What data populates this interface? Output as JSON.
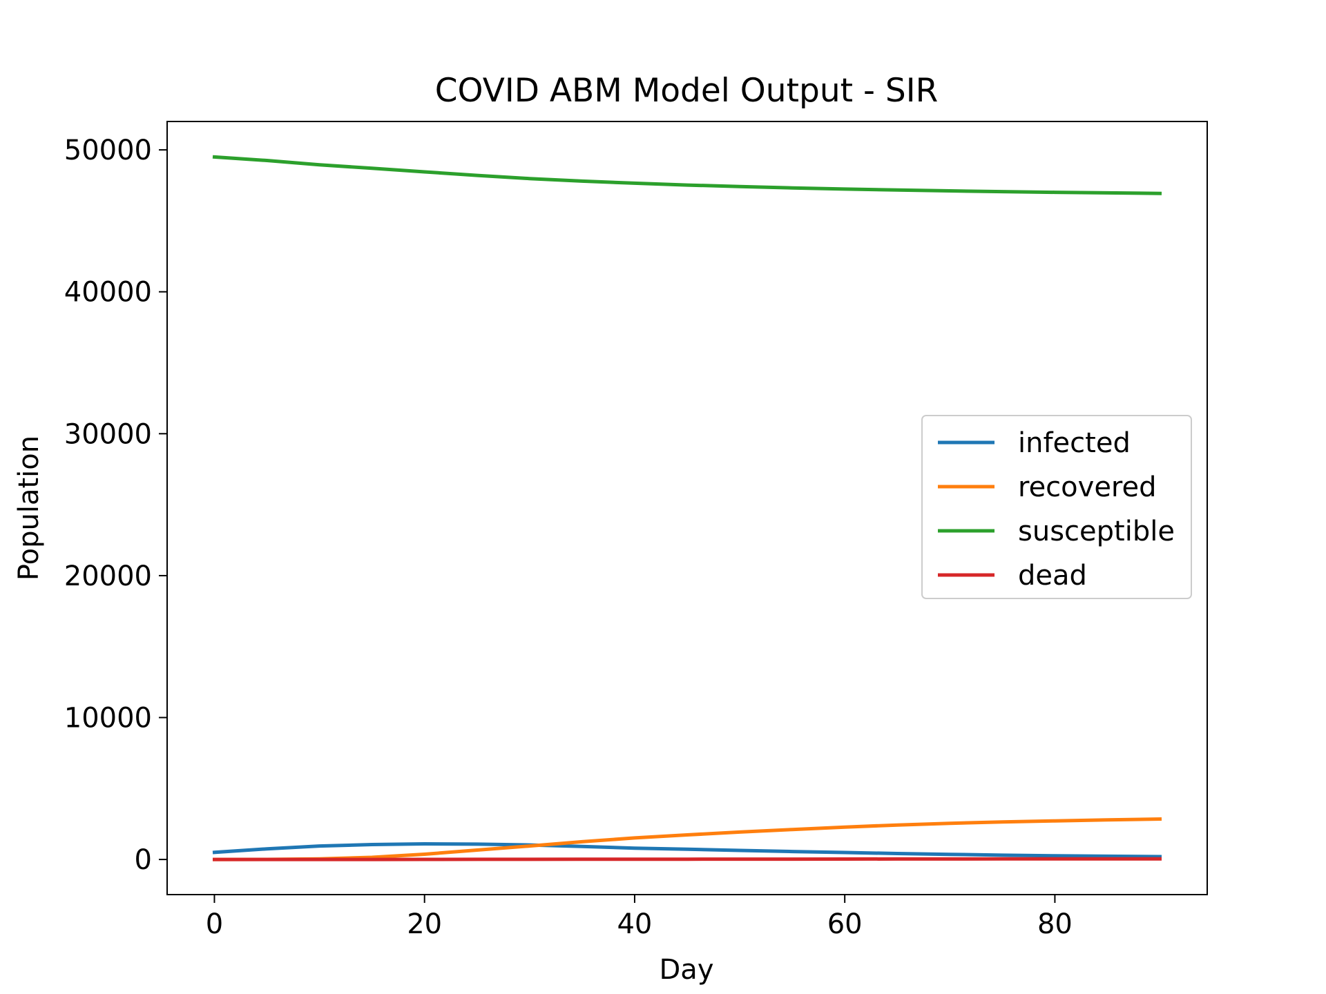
{
  "chart_data": {
    "type": "line",
    "title": "COVID ABM Model Output - SIR",
    "xlabel": "Day",
    "ylabel": "Population",
    "xlim": [
      -4.5,
      94.5
    ],
    "ylim": [
      -2475,
      52000
    ],
    "xticks": [
      0,
      20,
      40,
      60,
      80
    ],
    "yticks": [
      0,
      10000,
      20000,
      30000,
      40000,
      50000
    ],
    "xtick_labels": [
      "0",
      "20",
      "40",
      "60",
      "80"
    ],
    "ytick_labels": [
      "0",
      "10000",
      "20000",
      "30000",
      "40000",
      "50000"
    ],
    "grid": false,
    "legend_position": "center-right",
    "x": [
      0,
      5,
      10,
      15,
      20,
      25,
      30,
      35,
      40,
      45,
      50,
      55,
      60,
      65,
      70,
      75,
      80,
      85,
      90
    ],
    "series": [
      {
        "name": "infected",
        "color": "#1f77b4",
        "values": [
          500,
          750,
          950,
          1050,
          1100,
          1080,
          1020,
          920,
          800,
          720,
          640,
          560,
          490,
          420,
          360,
          300,
          260,
          230,
          200
        ]
      },
      {
        "name": "recovered",
        "color": "#ff7f0e",
        "values": [
          0,
          5,
          40,
          150,
          370,
          660,
          950,
          1250,
          1520,
          1730,
          1930,
          2110,
          2280,
          2430,
          2550,
          2640,
          2720,
          2790,
          2850
        ]
      },
      {
        "name": "susceptible",
        "color": "#2ca02c",
        "values": [
          49500,
          49250,
          48950,
          48700,
          48450,
          48200,
          47980,
          47800,
          47650,
          47520,
          47420,
          47320,
          47240,
          47170,
          47110,
          47060,
          47010,
          46970,
          46930
        ]
      },
      {
        "name": "dead",
        "color": "#d62728",
        "values": [
          0,
          0,
          1,
          3,
          5,
          8,
          11,
          14,
          18,
          21,
          24,
          27,
          30,
          33,
          36,
          38,
          40,
          42,
          44
        ]
      }
    ]
  }
}
